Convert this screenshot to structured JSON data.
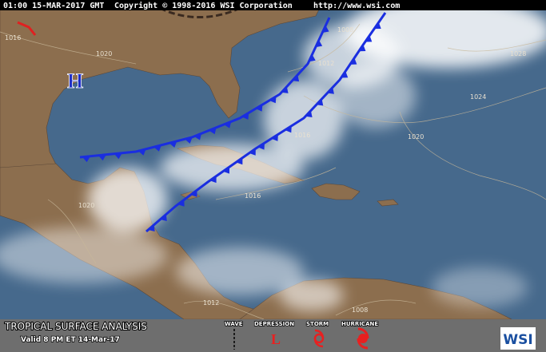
{
  "header": {
    "timestamp": "01:00 15-MAR-2017 GMT",
    "copyright": "Copyright © 1998-2016 WSI Corporation",
    "url": "http://www.wsi.com"
  },
  "map": {
    "high_pressure": "H",
    "isobar_labels": [
      "1016",
      "1020",
      "1008",
      "1012",
      "1028",
      "1024",
      "1020",
      "1016",
      "1016",
      "1020",
      "1012",
      "1008"
    ]
  },
  "footer": {
    "title": "TROPICAL SURFACE ANALYSIS",
    "valid": "Valid 8 PM ET 14-Mar-17",
    "legend": [
      {
        "label": "WAVE"
      },
      {
        "label": "DEPRESSION",
        "symbol": "L"
      },
      {
        "label": "STORM"
      },
      {
        "label": "HURRICANE"
      }
    ],
    "logo": "WSI"
  }
}
